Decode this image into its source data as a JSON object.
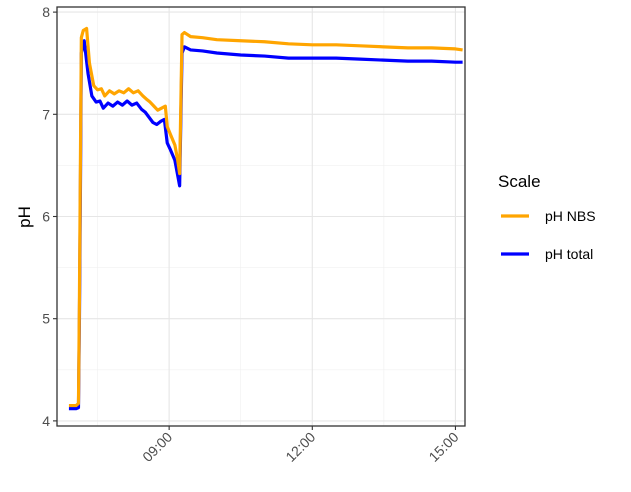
{
  "chart_data": {
    "type": "line",
    "title": "",
    "xlabel": "",
    "ylabel": "pH",
    "x_unit": "clock time (hours)",
    "xlim": [
      6.65,
      15.2
    ],
    "ylim": [
      3.95,
      8.05
    ],
    "x_ticks": [
      {
        "value": 9,
        "label": "09:00"
      },
      {
        "value": 12,
        "label": "12:00"
      },
      {
        "value": 15,
        "label": "15:00"
      }
    ],
    "y_ticks": [
      {
        "value": 4,
        "label": "4"
      },
      {
        "value": 5,
        "label": "5"
      },
      {
        "value": 6,
        "label": "6"
      },
      {
        "value": 7,
        "label": "7"
      },
      {
        "value": 8,
        "label": "8"
      }
    ],
    "grid": true,
    "legend": {
      "title": "Scale",
      "position": "right",
      "entries": [
        {
          "label": "pH NBS",
          "color": "#FFA500"
        },
        {
          "label": "pH total",
          "color": "#0000FF"
        }
      ]
    },
    "series": [
      {
        "name": "pH NBS",
        "color": "#FFA500",
        "points": [
          [
            6.9,
            4.15
          ],
          [
            7.05,
            4.15
          ],
          [
            7.1,
            4.17
          ],
          [
            7.12,
            5.2
          ],
          [
            7.14,
            6.5
          ],
          [
            7.16,
            7.75
          ],
          [
            7.2,
            7.82
          ],
          [
            7.27,
            7.84
          ],
          [
            7.33,
            7.5
          ],
          [
            7.42,
            7.28
          ],
          [
            7.5,
            7.24
          ],
          [
            7.58,
            7.25
          ],
          [
            7.65,
            7.18
          ],
          [
            7.75,
            7.23
          ],
          [
            7.85,
            7.2
          ],
          [
            7.95,
            7.23
          ],
          [
            8.05,
            7.21
          ],
          [
            8.15,
            7.25
          ],
          [
            8.25,
            7.21
          ],
          [
            8.35,
            7.23
          ],
          [
            8.45,
            7.18
          ],
          [
            8.52,
            7.15
          ],
          [
            8.6,
            7.12
          ],
          [
            8.68,
            7.08
          ],
          [
            8.76,
            7.04
          ],
          [
            8.84,
            7.06
          ],
          [
            8.92,
            7.08
          ],
          [
            8.96,
            6.88
          ],
          [
            9.03,
            6.8
          ],
          [
            9.12,
            6.7
          ],
          [
            9.18,
            6.55
          ],
          [
            9.22,
            6.42
          ],
          [
            9.27,
            7.78
          ],
          [
            9.32,
            7.8
          ],
          [
            9.45,
            7.76
          ],
          [
            9.7,
            7.75
          ],
          [
            10.0,
            7.73
          ],
          [
            10.5,
            7.72
          ],
          [
            11.0,
            7.71
          ],
          [
            11.5,
            7.69
          ],
          [
            12.0,
            7.68
          ],
          [
            12.5,
            7.68
          ],
          [
            13.0,
            7.67
          ],
          [
            13.5,
            7.66
          ],
          [
            14.0,
            7.65
          ],
          [
            14.5,
            7.65
          ],
          [
            15.0,
            7.64
          ],
          [
            15.15,
            7.63
          ]
        ]
      },
      {
        "name": "pH total",
        "color": "#0000FF",
        "points": [
          [
            6.9,
            4.12
          ],
          [
            7.05,
            4.12
          ],
          [
            7.1,
            4.13
          ],
          [
            7.12,
            5.0
          ],
          [
            7.14,
            6.2
          ],
          [
            7.16,
            7.6
          ],
          [
            7.22,
            7.72
          ],
          [
            7.3,
            7.4
          ],
          [
            7.38,
            7.18
          ],
          [
            7.47,
            7.12
          ],
          [
            7.55,
            7.13
          ],
          [
            7.62,
            7.06
          ],
          [
            7.72,
            7.11
          ],
          [
            7.82,
            7.08
          ],
          [
            7.92,
            7.12
          ],
          [
            8.02,
            7.09
          ],
          [
            8.12,
            7.13
          ],
          [
            8.22,
            7.09
          ],
          [
            8.32,
            7.11
          ],
          [
            8.42,
            7.05
          ],
          [
            8.5,
            7.02
          ],
          [
            8.58,
            6.97
          ],
          [
            8.66,
            6.92
          ],
          [
            8.74,
            6.9
          ],
          [
            8.82,
            6.93
          ],
          [
            8.9,
            6.95
          ],
          [
            8.96,
            6.72
          ],
          [
            9.03,
            6.65
          ],
          [
            9.12,
            6.55
          ],
          [
            9.18,
            6.4
          ],
          [
            9.22,
            6.3
          ],
          [
            9.27,
            7.6
          ],
          [
            9.32,
            7.66
          ],
          [
            9.45,
            7.63
          ],
          [
            9.7,
            7.62
          ],
          [
            10.0,
            7.6
          ],
          [
            10.5,
            7.58
          ],
          [
            11.0,
            7.57
          ],
          [
            11.5,
            7.55
          ],
          [
            12.0,
            7.55
          ],
          [
            12.5,
            7.55
          ],
          [
            13.0,
            7.54
          ],
          [
            13.5,
            7.53
          ],
          [
            14.0,
            7.52
          ],
          [
            14.5,
            7.52
          ],
          [
            15.0,
            7.51
          ],
          [
            15.15,
            7.51
          ]
        ]
      }
    ]
  }
}
